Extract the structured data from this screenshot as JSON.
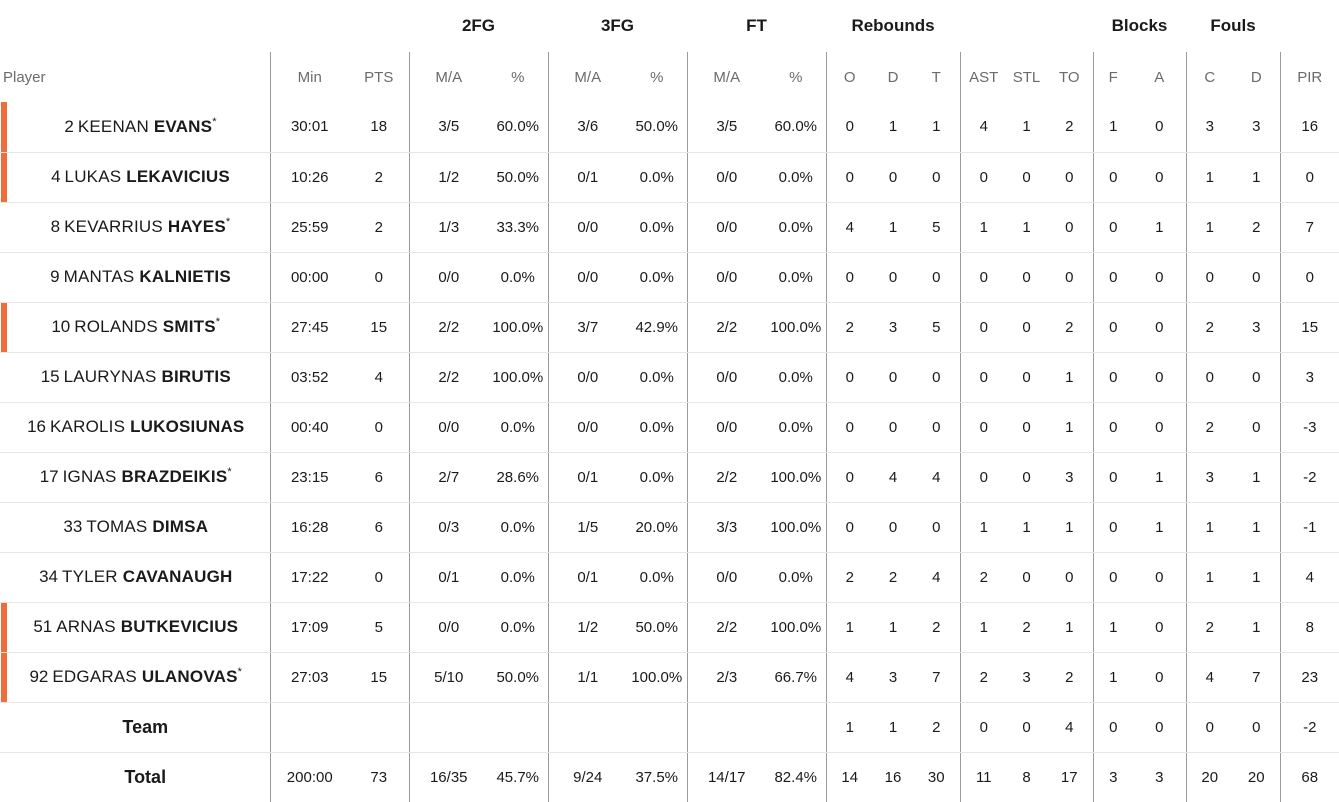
{
  "groups": {
    "fg2": "2FG",
    "fg3": "3FG",
    "ft": "FT",
    "reb": "Rebounds",
    "blk": "Blocks",
    "fouls": "Fouls"
  },
  "columns": {
    "player": "Player",
    "min": "Min",
    "pts": "PTS",
    "fg2_ma": "M/A",
    "fg2_pct": "%",
    "fg3_ma": "M/A",
    "fg3_pct": "%",
    "ft_ma": "M/A",
    "ft_pct": "%",
    "reb_o": "O",
    "reb_d": "D",
    "reb_t": "T",
    "ast": "AST",
    "stl": "STL",
    "to": "TO",
    "blk_f": "F",
    "blk_a": "A",
    "foul_c": "C",
    "foul_d": "D",
    "pir": "PIR"
  },
  "accent_color": "#ef6d3a",
  "players": [
    {
      "num": "2",
      "first": "KEENAN",
      "last": "EVANS",
      "star": "*",
      "highlight": true,
      "min": "30:01",
      "pts": "18",
      "fg2_ma": "3/5",
      "fg2_pct": "60.0%",
      "fg3_ma": "3/6",
      "fg3_pct": "50.0%",
      "ft_ma": "3/5",
      "ft_pct": "60.0%",
      "o": "0",
      "d": "1",
      "t": "1",
      "ast": "4",
      "stl": "1",
      "to": "2",
      "bf": "1",
      "ba": "0",
      "fc": "3",
      "fd": "3",
      "pir": "16"
    },
    {
      "num": "4",
      "first": "LUKAS",
      "last": "LEKAVICIUS",
      "star": "",
      "highlight": true,
      "min": "10:26",
      "pts": "2",
      "fg2_ma": "1/2",
      "fg2_pct": "50.0%",
      "fg3_ma": "0/1",
      "fg3_pct": "0.0%",
      "ft_ma": "0/0",
      "ft_pct": "0.0%",
      "o": "0",
      "d": "0",
      "t": "0",
      "ast": "0",
      "stl": "0",
      "to": "0",
      "bf": "0",
      "ba": "0",
      "fc": "1",
      "fd": "1",
      "pir": "0"
    },
    {
      "num": "8",
      "first": "KEVARRIUS",
      "last": "HAYES",
      "star": "*",
      "highlight": false,
      "min": "25:59",
      "pts": "2",
      "fg2_ma": "1/3",
      "fg2_pct": "33.3%",
      "fg3_ma": "0/0",
      "fg3_pct": "0.0%",
      "ft_ma": "0/0",
      "ft_pct": "0.0%",
      "o": "4",
      "d": "1",
      "t": "5",
      "ast": "1",
      "stl": "1",
      "to": "0",
      "bf": "0",
      "ba": "1",
      "fc": "1",
      "fd": "2",
      "pir": "7"
    },
    {
      "num": "9",
      "first": "MANTAS",
      "last": "KALNIETIS",
      "star": "",
      "highlight": false,
      "min": "00:00",
      "pts": "0",
      "fg2_ma": "0/0",
      "fg2_pct": "0.0%",
      "fg3_ma": "0/0",
      "fg3_pct": "0.0%",
      "ft_ma": "0/0",
      "ft_pct": "0.0%",
      "o": "0",
      "d": "0",
      "t": "0",
      "ast": "0",
      "stl": "0",
      "to": "0",
      "bf": "0",
      "ba": "0",
      "fc": "0",
      "fd": "0",
      "pir": "0"
    },
    {
      "num": "10",
      "first": "ROLANDS",
      "last": "SMITS",
      "star": "*",
      "highlight": true,
      "min": "27:45",
      "pts": "15",
      "fg2_ma": "2/2",
      "fg2_pct": "100.0%",
      "fg3_ma": "3/7",
      "fg3_pct": "42.9%",
      "ft_ma": "2/2",
      "ft_pct": "100.0%",
      "o": "2",
      "d": "3",
      "t": "5",
      "ast": "0",
      "stl": "0",
      "to": "2",
      "bf": "0",
      "ba": "0",
      "fc": "2",
      "fd": "3",
      "pir": "15"
    },
    {
      "num": "15",
      "first": "LAURYNAS",
      "last": "BIRUTIS",
      "star": "",
      "highlight": false,
      "min": "03:52",
      "pts": "4",
      "fg2_ma": "2/2",
      "fg2_pct": "100.0%",
      "fg3_ma": "0/0",
      "fg3_pct": "0.0%",
      "ft_ma": "0/0",
      "ft_pct": "0.0%",
      "o": "0",
      "d": "0",
      "t": "0",
      "ast": "0",
      "stl": "0",
      "to": "1",
      "bf": "0",
      "ba": "0",
      "fc": "0",
      "fd": "0",
      "pir": "3"
    },
    {
      "num": "16",
      "first": "KAROLIS",
      "last": "LUKOSIUNAS",
      "star": "",
      "highlight": false,
      "min": "00:40",
      "pts": "0",
      "fg2_ma": "0/0",
      "fg2_pct": "0.0%",
      "fg3_ma": "0/0",
      "fg3_pct": "0.0%",
      "ft_ma": "0/0",
      "ft_pct": "0.0%",
      "o": "0",
      "d": "0",
      "t": "0",
      "ast": "0",
      "stl": "0",
      "to": "1",
      "bf": "0",
      "ba": "0",
      "fc": "2",
      "fd": "0",
      "pir": "-3"
    },
    {
      "num": "17",
      "first": "IGNAS",
      "last": "BRAZDEIKIS",
      "star": "*",
      "highlight": false,
      "min": "23:15",
      "pts": "6",
      "fg2_ma": "2/7",
      "fg2_pct": "28.6%",
      "fg3_ma": "0/1",
      "fg3_pct": "0.0%",
      "ft_ma": "2/2",
      "ft_pct": "100.0%",
      "o": "0",
      "d": "4",
      "t": "4",
      "ast": "0",
      "stl": "0",
      "to": "3",
      "bf": "0",
      "ba": "1",
      "fc": "3",
      "fd": "1",
      "pir": "-2"
    },
    {
      "num": "33",
      "first": "TOMAS",
      "last": "DIMSA",
      "star": "",
      "highlight": false,
      "min": "16:28",
      "pts": "6",
      "fg2_ma": "0/3",
      "fg2_pct": "0.0%",
      "fg3_ma": "1/5",
      "fg3_pct": "20.0%",
      "ft_ma": "3/3",
      "ft_pct": "100.0%",
      "o": "0",
      "d": "0",
      "t": "0",
      "ast": "1",
      "stl": "1",
      "to": "1",
      "bf": "0",
      "ba": "1",
      "fc": "1",
      "fd": "1",
      "pir": "-1"
    },
    {
      "num": "34",
      "first": "TYLER",
      "last": "CAVANAUGH",
      "star": "",
      "highlight": false,
      "min": "17:22",
      "pts": "0",
      "fg2_ma": "0/1",
      "fg2_pct": "0.0%",
      "fg3_ma": "0/1",
      "fg3_pct": "0.0%",
      "ft_ma": "0/0",
      "ft_pct": "0.0%",
      "o": "2",
      "d": "2",
      "t": "4",
      "ast": "2",
      "stl": "0",
      "to": "0",
      "bf": "0",
      "ba": "0",
      "fc": "1",
      "fd": "1",
      "pir": "4"
    },
    {
      "num": "51",
      "first": "ARNAS",
      "last": "BUTKEVICIUS",
      "star": "",
      "highlight": true,
      "min": "17:09",
      "pts": "5",
      "fg2_ma": "0/0",
      "fg2_pct": "0.0%",
      "fg3_ma": "1/2",
      "fg3_pct": "50.0%",
      "ft_ma": "2/2",
      "ft_pct": "100.0%",
      "o": "1",
      "d": "1",
      "t": "2",
      "ast": "1",
      "stl": "2",
      "to": "1",
      "bf": "1",
      "ba": "0",
      "fc": "2",
      "fd": "1",
      "pir": "8"
    },
    {
      "num": "92",
      "first": "EDGARAS",
      "last": "ULANOVAS",
      "star": "*",
      "highlight": true,
      "min": "27:03",
      "pts": "15",
      "fg2_ma": "5/10",
      "fg2_pct": "50.0%",
      "fg3_ma": "1/1",
      "fg3_pct": "100.0%",
      "ft_ma": "2/3",
      "ft_pct": "66.7%",
      "o": "4",
      "d": "3",
      "t": "7",
      "ast": "2",
      "stl": "3",
      "to": "2",
      "bf": "1",
      "ba": "0",
      "fc": "4",
      "fd": "7",
      "pir": "23"
    }
  ],
  "team": {
    "label": "Team",
    "min": "",
    "pts": "",
    "fg2_ma": "",
    "fg2_pct": "",
    "fg3_ma": "",
    "fg3_pct": "",
    "ft_ma": "",
    "ft_pct": "",
    "o": "1",
    "d": "1",
    "t": "2",
    "ast": "0",
    "stl": "0",
    "to": "4",
    "bf": "0",
    "ba": "0",
    "fc": "0",
    "fd": "0",
    "pir": "-2"
  },
  "total": {
    "label": "Total",
    "min": "200:00",
    "pts": "73",
    "fg2_ma": "16/35",
    "fg2_pct": "45.7%",
    "fg3_ma": "9/24",
    "fg3_pct": "37.5%",
    "ft_ma": "14/17",
    "ft_pct": "82.4%",
    "o": "14",
    "d": "16",
    "t": "30",
    "ast": "11",
    "stl": "8",
    "to": "17",
    "bf": "3",
    "ba": "3",
    "fc": "20",
    "fd": "20",
    "pir": "68"
  }
}
